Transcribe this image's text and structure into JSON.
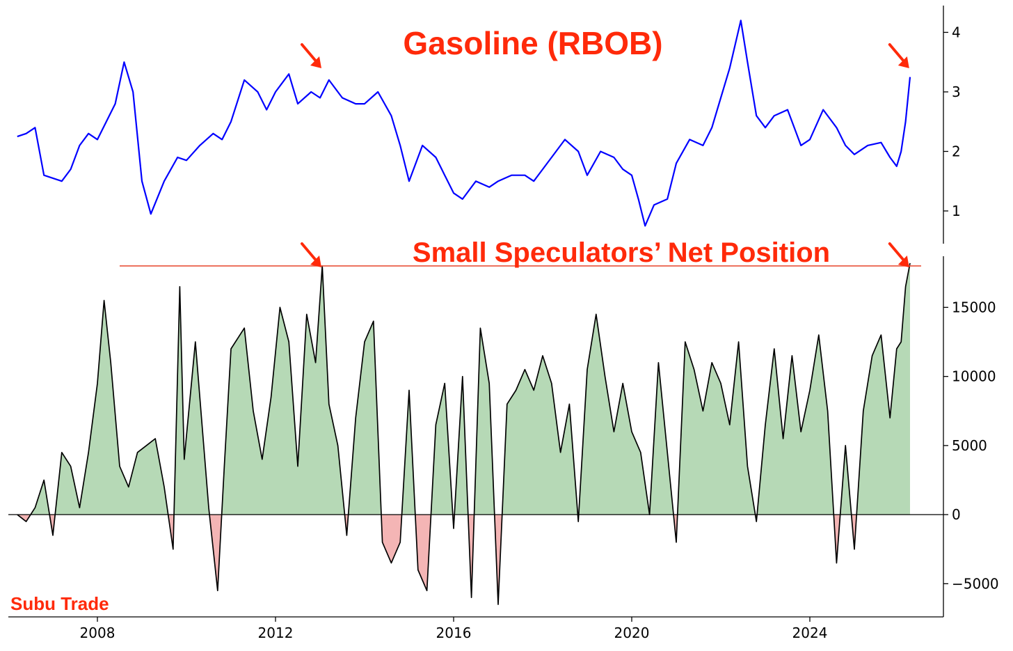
{
  "chart_data": [
    {
      "type": "line",
      "title": "Gasoline (RBOB)",
      "xlim": [
        2006.0,
        2027.0
      ],
      "ylim": [
        0.45,
        4.45
      ],
      "yticks": [
        1,
        2,
        3,
        4
      ],
      "line_color": "#0000ff",
      "annotation_color": "#ff2a0a",
      "arrows_at": [
        2013.0,
        2026.2
      ],
      "series": [
        {
          "x": [
            2006.2,
            2006.4,
            2006.6,
            2006.8,
            2007.0,
            2007.2,
            2007.4,
            2007.6,
            2007.8,
            2008.0,
            2008.2,
            2008.4,
            2008.6,
            2008.8,
            2009.0,
            2009.2,
            2009.5,
            2009.8,
            2010.0,
            2010.3,
            2010.6,
            2010.8,
            2011.0,
            2011.3,
            2011.6,
            2011.8,
            2012.0,
            2012.3,
            2012.5,
            2012.8,
            2013.0,
            2013.2,
            2013.5,
            2013.8,
            2014.0,
            2014.3,
            2014.6,
            2014.8,
            2015.0,
            2015.3,
            2015.6,
            2015.8,
            2016.0,
            2016.2,
            2016.5,
            2016.8,
            2017.0,
            2017.3,
            2017.6,
            2017.8,
            2018.0,
            2018.3,
            2018.5,
            2018.8,
            2019.0,
            2019.3,
            2019.6,
            2019.8,
            2020.0,
            2020.15,
            2020.3,
            2020.5,
            2020.8,
            2021.0,
            2021.3,
            2021.6,
            2021.8,
            2022.0,
            2022.2,
            2022.45,
            2022.6,
            2022.8,
            2023.0,
            2023.2,
            2023.5,
            2023.8,
            2024.0,
            2024.3,
            2024.6,
            2024.8,
            2025.0,
            2025.3,
            2025.6,
            2025.8,
            2025.95,
            2026.05,
            2026.15,
            2026.25
          ],
          "y": [
            2.25,
            2.3,
            2.4,
            1.6,
            1.55,
            1.5,
            1.7,
            2.1,
            2.3,
            2.2,
            2.5,
            2.8,
            3.5,
            3.0,
            1.5,
            0.95,
            1.5,
            1.9,
            1.85,
            2.1,
            2.3,
            2.2,
            2.5,
            3.2,
            3.0,
            2.7,
            3.0,
            3.3,
            2.8,
            3.0,
            2.9,
            3.2,
            2.9,
            2.8,
            2.8,
            3.0,
            2.6,
            2.1,
            1.5,
            2.1,
            1.9,
            1.6,
            1.3,
            1.2,
            1.5,
            1.4,
            1.5,
            1.6,
            1.6,
            1.5,
            1.7,
            2.0,
            2.2,
            2.0,
            1.6,
            2.0,
            1.9,
            1.7,
            1.6,
            1.2,
            0.75,
            1.1,
            1.2,
            1.8,
            2.2,
            2.1,
            2.4,
            2.9,
            3.4,
            4.2,
            3.5,
            2.6,
            2.4,
            2.6,
            2.7,
            2.1,
            2.2,
            2.7,
            2.4,
            2.1,
            1.95,
            2.1,
            2.15,
            1.9,
            1.75,
            2.0,
            2.5,
            3.25
          ]
        }
      ]
    },
    {
      "type": "area",
      "title": "Small Speculators’ Net Position",
      "xlim": [
        2006.0,
        2027.0
      ],
      "ylim": [
        -7400,
        18700
      ],
      "yticks": [
        -5000,
        0,
        5000,
        10000,
        15000
      ],
      "xticks": [
        2008,
        2012,
        2016,
        2020,
        2024
      ],
      "reference_line": 18000,
      "line_color": "#000000",
      "positive_fill": "#b6d9b6",
      "negative_fill": "#f4b5b5",
      "arrows_at": [
        2013.0,
        2026.2
      ],
      "series": [
        {
          "x": [
            2006.2,
            2006.4,
            2006.6,
            2006.8,
            2007.0,
            2007.2,
            2007.4,
            2007.6,
            2007.8,
            2008.0,
            2008.15,
            2008.3,
            2008.5,
            2008.7,
            2008.9,
            2009.1,
            2009.3,
            2009.5,
            2009.7,
            2009.85,
            2009.95,
            2010.2,
            2010.5,
            2010.7,
            2010.85,
            2011.0,
            2011.3,
            2011.5,
            2011.7,
            2011.9,
            2012.1,
            2012.3,
            2012.5,
            2012.7,
            2012.9,
            2013.05,
            2013.2,
            2013.4,
            2013.6,
            2013.8,
            2014.0,
            2014.2,
            2014.4,
            2014.6,
            2014.8,
            2015.0,
            2015.2,
            2015.4,
            2015.6,
            2015.8,
            2016.0,
            2016.2,
            2016.4,
            2016.6,
            2016.8,
            2017.0,
            2017.2,
            2017.4,
            2017.6,
            2017.8,
            2018.0,
            2018.2,
            2018.4,
            2018.6,
            2018.8,
            2019.0,
            2019.2,
            2019.4,
            2019.6,
            2019.8,
            2020.0,
            2020.2,
            2020.4,
            2020.6,
            2020.8,
            2021.0,
            2021.2,
            2021.4,
            2021.6,
            2021.8,
            2022.0,
            2022.2,
            2022.4,
            2022.6,
            2022.8,
            2023.0,
            2023.2,
            2023.4,
            2023.6,
            2023.8,
            2024.0,
            2024.2,
            2024.4,
            2024.6,
            2024.8,
            2025.0,
            2025.2,
            2025.4,
            2025.6,
            2025.8,
            2025.95,
            2026.05,
            2026.15,
            2026.25
          ],
          "y": [
            0,
            -500,
            500,
            2500,
            -1500,
            4500,
            3500,
            500,
            4500,
            9500,
            15500,
            11000,
            3500,
            2000,
            4500,
            5000,
            5500,
            2000,
            -2500,
            16500,
            4000,
            12500,
            500,
            -5500,
            3500,
            12000,
            13500,
            7500,
            4000,
            8500,
            15000,
            12500,
            3500,
            14500,
            11000,
            18000,
            8000,
            5000,
            -1500,
            7000,
            12500,
            14000,
            -2000,
            -3500,
            -2000,
            9000,
            -4000,
            -5500,
            6500,
            9500,
            -1000,
            10000,
            -6000,
            13500,
            9500,
            -6500,
            8000,
            9000,
            10500,
            9000,
            11500,
            9500,
            4500,
            8000,
            -500,
            10500,
            14500,
            10000,
            6000,
            9500,
            6000,
            4500,
            0,
            11000,
            4500,
            -2000,
            12500,
            10500,
            7500,
            11000,
            9500,
            6500,
            12500,
            3500,
            -500,
            6500,
            12000,
            5500,
            11500,
            6000,
            9000,
            13000,
            7500,
            -3500,
            5000,
            -2500,
            7500,
            11500,
            13000,
            7000,
            12000,
            12500,
            16500,
            18200
          ]
        }
      ]
    },
    {
      "watermark": "Subu Trade"
    }
  ]
}
